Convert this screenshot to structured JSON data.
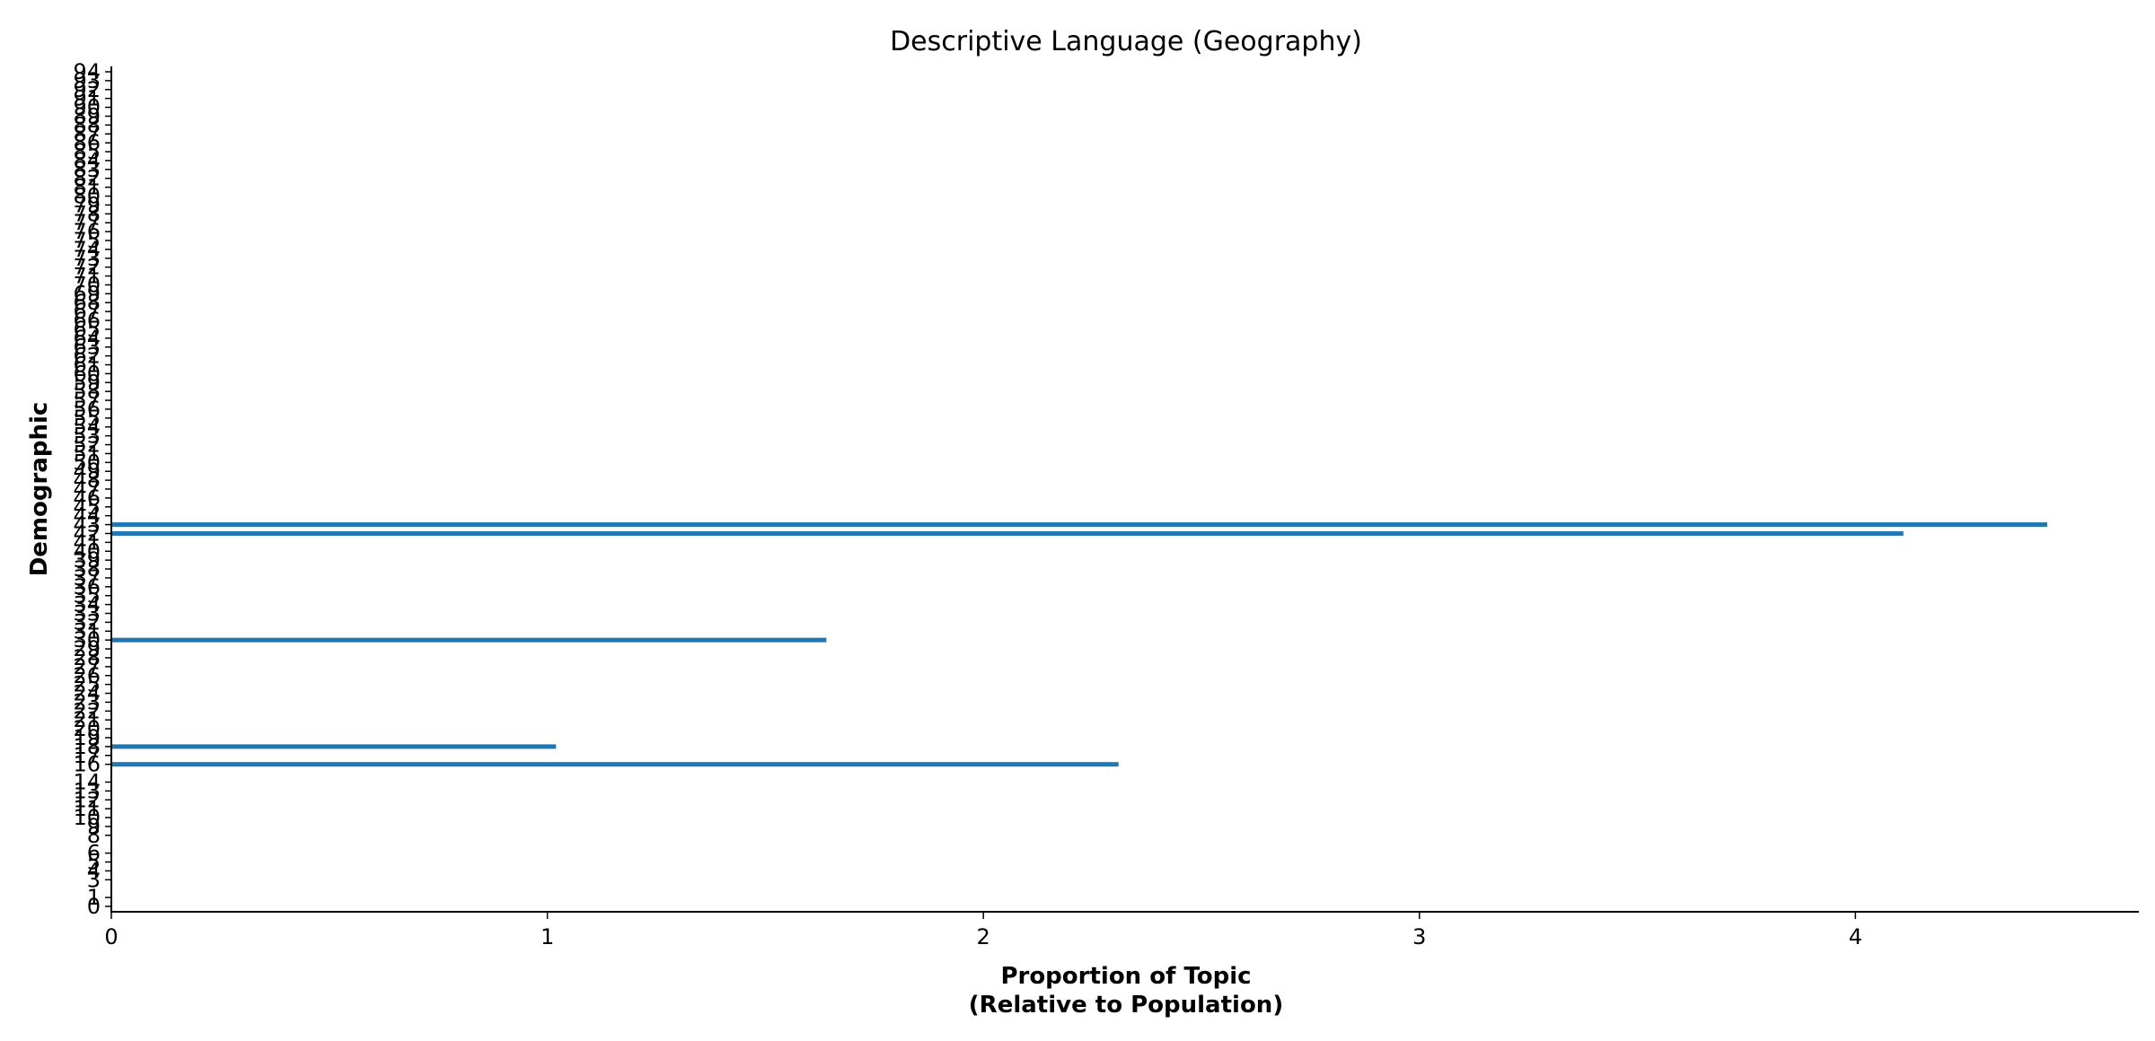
{
  "chart_data": {
    "type": "bar",
    "orientation": "horizontal",
    "title": "Descriptive Language (Geography)",
    "xlabel": [
      "Proportion of Topic",
      "(Relative to Population)"
    ],
    "ylabel": "Demographic",
    "xlim": [
      0,
      4.65
    ],
    "ylim": [
      0,
      94
    ],
    "xticks": [
      0,
      1,
      2,
      3,
      4
    ],
    "yticks": [
      0,
      1,
      3,
      4,
      5,
      6,
      8,
      9,
      10,
      11,
      12,
      13,
      14,
      16,
      17,
      18,
      19,
      20,
      21,
      22,
      23,
      24,
      25,
      26,
      27,
      28,
      29,
      30,
      31,
      32,
      33,
      34,
      35,
      36,
      37,
      38,
      39,
      40,
      41,
      42,
      43,
      44,
      45,
      46,
      47,
      48,
      49,
      50,
      51,
      52,
      53,
      54,
      55,
      56,
      57,
      58,
      59,
      60,
      61,
      62,
      63,
      64,
      65,
      66,
      67,
      68,
      69,
      70,
      71,
      72,
      73,
      74,
      75,
      76,
      77,
      78,
      79,
      80,
      81,
      82,
      83,
      84,
      85,
      86,
      87,
      88,
      89,
      90,
      91,
      92,
      93,
      94
    ],
    "grid": false,
    "bar_color": "#1f77b4",
    "bars": [
      {
        "y": 16,
        "value": 2.31
      },
      {
        "y": 18,
        "value": 1.02
      },
      {
        "y": 30,
        "value": 1.64
      },
      {
        "y": 42,
        "value": 4.11
      },
      {
        "y": 43,
        "value": 4.44
      }
    ]
  }
}
